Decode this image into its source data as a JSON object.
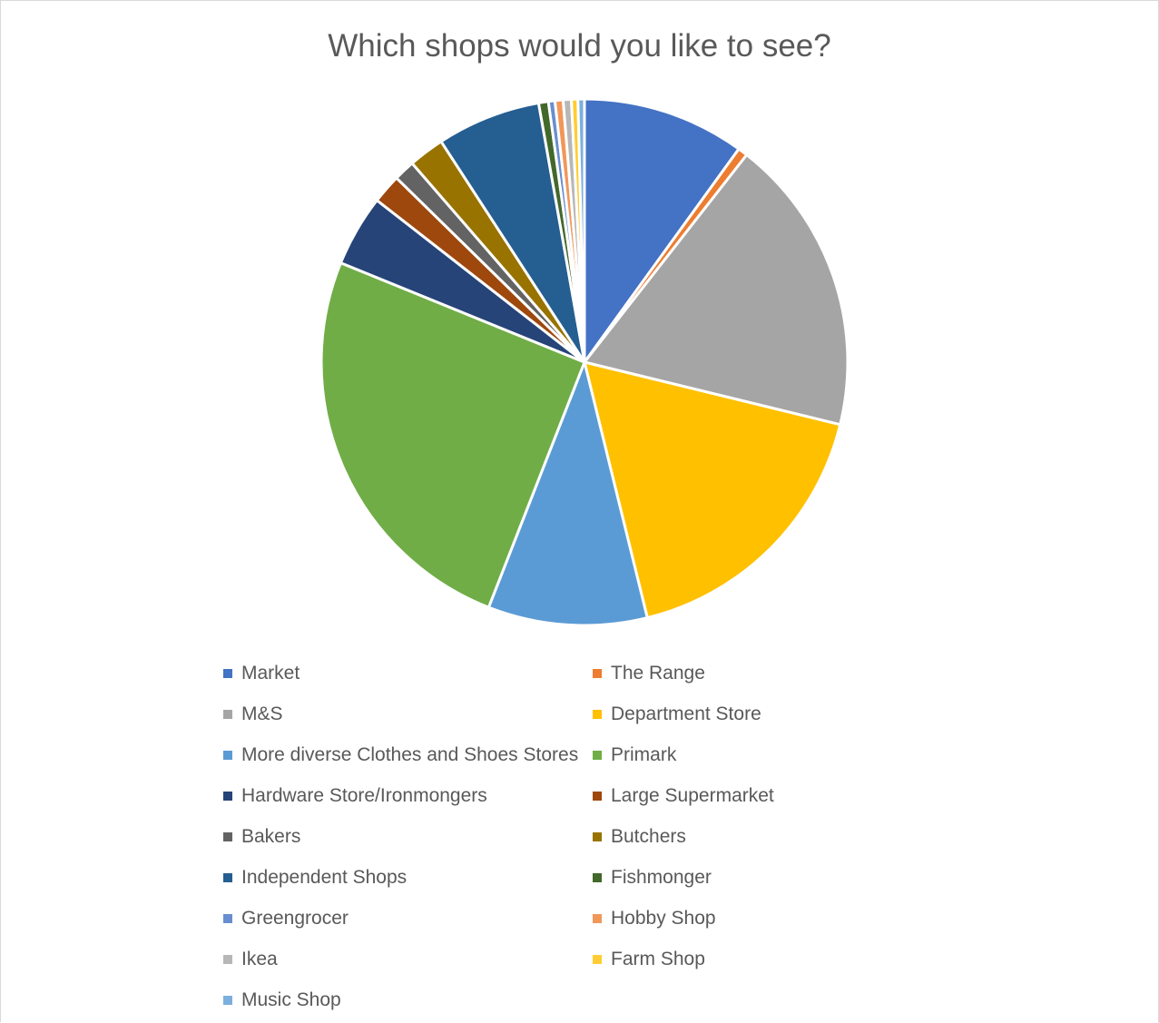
{
  "chart_data": {
    "type": "pie",
    "title": "Which shops would you like to see?",
    "categories": [
      "Market",
      "The Range",
      "M&S",
      "Department Store",
      "More diverse Clothes and Shoes Stores",
      "Primark",
      "Hardware Store/Ironmongers",
      "Large Supermarket",
      "Bakers",
      "Butchers",
      "Independent Shops",
      "Fishmonger",
      "Greengrocer",
      "Hobby Shop",
      "Ikea",
      "Farm Shop",
      "Music Shop"
    ],
    "values": [
      10.0,
      0.6,
      18.3,
      17.4,
      9.8,
      25.3,
      4.4,
      1.8,
      1.3,
      2.2,
      6.4,
      0.6,
      0.4,
      0.5,
      0.5,
      0.4,
      0.4
    ],
    "colors": [
      "#4472C4",
      "#ED7D31",
      "#A5A5A5",
      "#FFC000",
      "#5B9BD5",
      "#70AD47",
      "#264478",
      "#9E480E",
      "#636363",
      "#997300",
      "#255E91",
      "#43682B",
      "#698ED0",
      "#F1975A",
      "#B7B7B7",
      "#FFCD33",
      "#7CAFDD"
    ],
    "legend_position": "bottom"
  }
}
